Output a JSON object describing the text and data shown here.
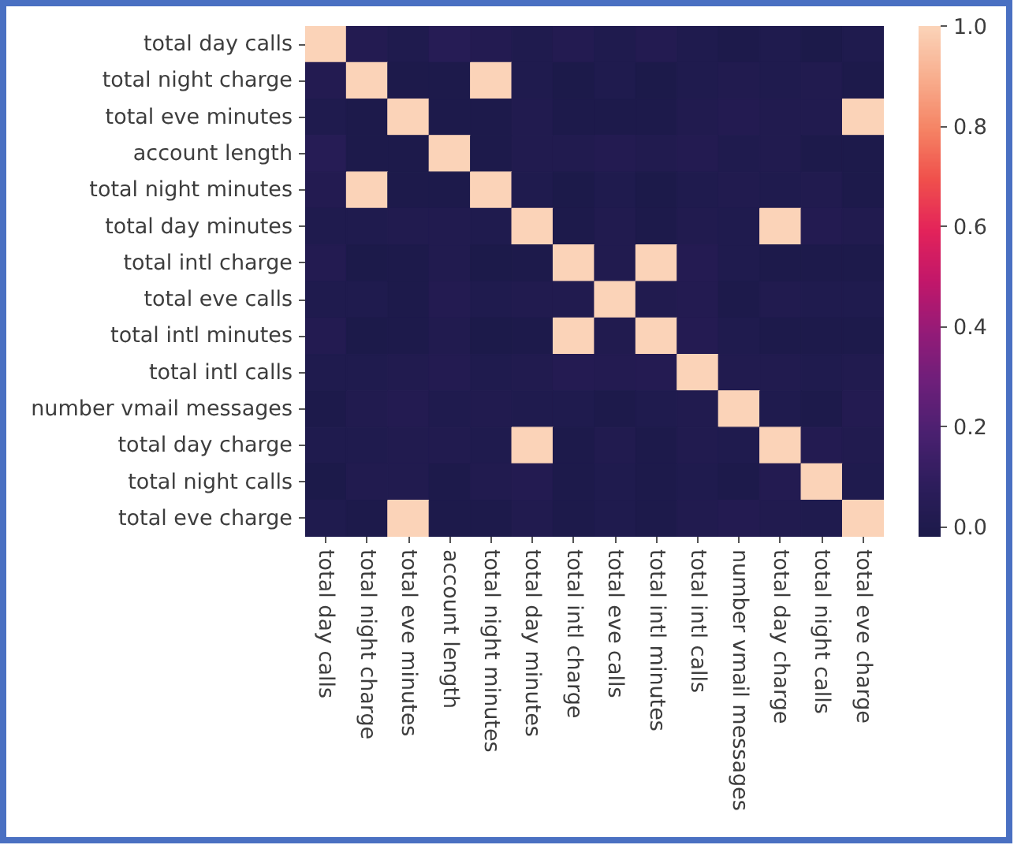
{
  "chart_data": {
    "type": "heatmap",
    "categories": [
      "total day calls",
      "total night charge",
      "total eve minutes",
      "account length",
      "total night minutes",
      "total day minutes",
      "total intl charge",
      "total eve calls",
      "total intl minutes",
      "total intl calls",
      "number vmail messages",
      "total day charge",
      "total night calls",
      "total eve charge"
    ],
    "y_categories": [
      "total day calls",
      "total night charge",
      "total eve minutes",
      "account length",
      "total night minutes",
      "total day minutes",
      "total intl charge",
      "total eve calls",
      "total intl minutes",
      "total intl calls",
      "number vmail messages",
      "total day charge",
      "total night calls",
      "total eve charge"
    ],
    "cells": [
      [
        1.0,
        0.02,
        0.0,
        0.04,
        0.02,
        0.0,
        0.02,
        0.0,
        0.02,
        0.0,
        -0.01,
        0.0,
        -0.02,
        0.0
      ],
      [
        0.02,
        1.0,
        -0.01,
        -0.01,
        1.0,
        0.0,
        -0.02,
        0.0,
        -0.02,
        0.0,
        0.01,
        0.0,
        0.01,
        -0.01
      ],
      [
        0.0,
        -0.01,
        1.0,
        -0.01,
        -0.01,
        0.01,
        -0.01,
        -0.01,
        -0.01,
        0.01,
        0.02,
        0.01,
        0.01,
        1.0
      ],
      [
        0.04,
        -0.01,
        -0.01,
        1.0,
        -0.01,
        0.01,
        0.01,
        0.02,
        0.01,
        0.02,
        0.0,
        0.01,
        -0.01,
        -0.01
      ],
      [
        0.02,
        1.0,
        -0.01,
        -0.01,
        1.0,
        0.0,
        -0.02,
        0.0,
        -0.02,
        0.0,
        0.01,
        0.0,
        0.01,
        -0.01
      ],
      [
        0.0,
        0.0,
        0.01,
        0.01,
        0.0,
        1.0,
        -0.01,
        0.01,
        -0.01,
        0.01,
        0.0,
        1.0,
        0.02,
        0.01
      ],
      [
        0.02,
        -0.02,
        -0.01,
        0.01,
        -0.02,
        -0.01,
        1.0,
        0.01,
        1.0,
        0.03,
        0.0,
        -0.01,
        -0.01,
        -0.01
      ],
      [
        0.0,
        0.0,
        -0.01,
        0.02,
        0.0,
        0.01,
        0.01,
        1.0,
        0.01,
        0.02,
        -0.01,
        0.01,
        0.0,
        0.0
      ],
      [
        0.02,
        -0.02,
        -0.01,
        0.01,
        -0.02,
        -0.01,
        1.0,
        0.01,
        1.0,
        0.03,
        0.0,
        -0.01,
        -0.01,
        -0.01
      ],
      [
        0.0,
        0.0,
        0.01,
        0.02,
        0.0,
        0.01,
        0.03,
        0.02,
        0.03,
        1.0,
        0.01,
        0.01,
        0.0,
        0.01
      ],
      [
        -0.01,
        0.01,
        0.02,
        0.0,
        0.01,
        0.0,
        0.0,
        -0.01,
        0.0,
        0.01,
        1.0,
        0.0,
        -0.01,
        0.02
      ],
      [
        0.0,
        0.0,
        0.01,
        0.01,
        0.0,
        1.0,
        -0.01,
        0.01,
        -0.01,
        0.01,
        0.0,
        1.0,
        0.02,
        0.01
      ],
      [
        -0.02,
        0.01,
        0.01,
        -0.01,
        0.01,
        0.02,
        -0.01,
        0.0,
        -0.01,
        0.0,
        -0.01,
        0.02,
        1.0,
        0.0
      ],
      [
        0.0,
        -0.01,
        1.0,
        -0.01,
        -0.01,
        0.01,
        -0.01,
        0.0,
        -0.01,
        0.01,
        0.02,
        0.01,
        0.0,
        1.0
      ]
    ],
    "clim": [
      -0.02,
      1.0
    ],
    "cticks": [
      {
        "value": 0.0,
        "label": "0.0"
      },
      {
        "value": 0.2,
        "label": "0.2"
      },
      {
        "value": 0.4,
        "label": "0.4"
      },
      {
        "value": 0.6,
        "label": "0.6"
      },
      {
        "value": 0.8,
        "label": "0.8"
      },
      {
        "value": 1.0,
        "label": "1.0"
      }
    ]
  }
}
